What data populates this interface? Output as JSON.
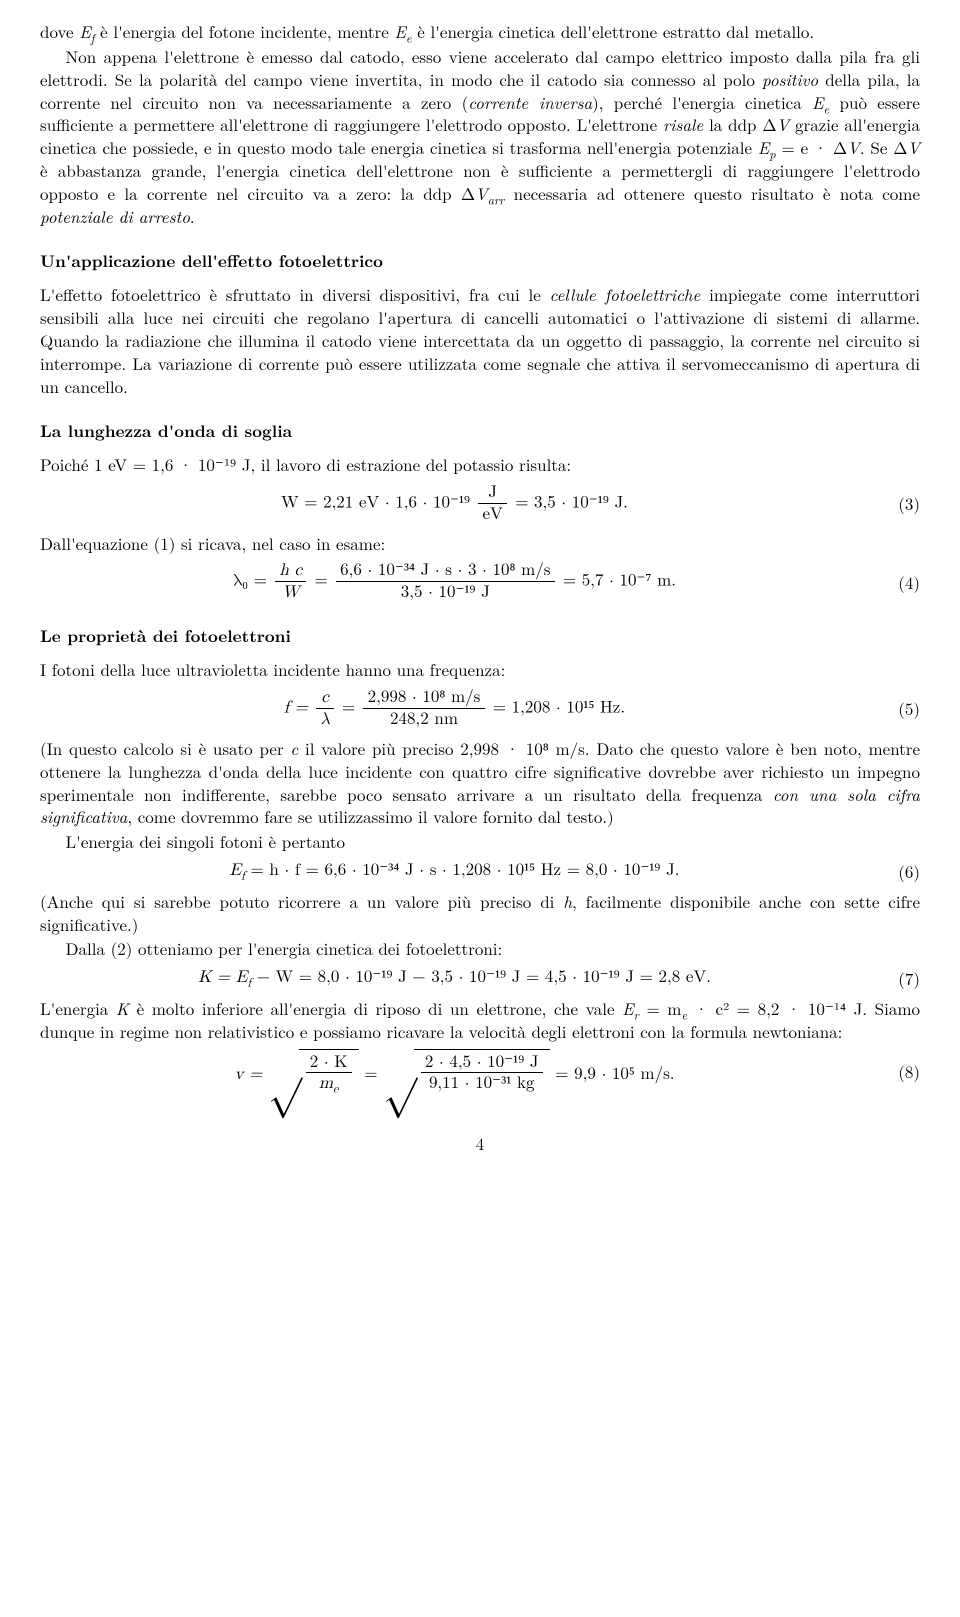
{
  "p1": {
    "t1": "dove ",
    "t2": " è l'energia del fotone incidente, mentre ",
    "t3": " è l'energia cinetica dell'elettrone estratto dal metallo."
  },
  "var_Ef": "E",
  "var_Ef_sub": "f",
  "var_Ee": "E",
  "var_Ee_sub": "e",
  "p2": {
    "t1": "Non appena l'elettrone è emesso dal catodo, esso viene accelerato dal campo elettrico imposto dalla pila fra gli elettrodi. Se la polarità del campo viene invertita, in modo che il catodo sia connesso al polo ",
    "positivo": "positivo",
    "t2": " della pila, la corrente nel circuito non va necessariamente a zero (",
    "corrente_inversa": "corrente inversa",
    "t3": "), perché l'energia cinetica ",
    "t4": " può essere sufficiente a permettere all'elettrone di raggiungere l'elettrodo opposto. L'elettrone ",
    "risale": "risale",
    "t5": " la ddp Δ",
    "V": "V",
    "t6": " grazie all'energia cinetica che possiede, e in questo modo tale energia cinetica si trasforma nell'energia potenziale ",
    "Ep_eq": "E",
    "Ep_sub": "p",
    "eq_mid": " = e · Δ",
    "t7": ". Se Δ",
    "t8": " è abbastanza grande, l'energia cinetica dell'elettrone non è sufficiente a permettergli di raggiungere l'elettrodo opposto e la corrente nel circuito va a zero: la ddp Δ",
    "Varr": "V",
    "Varr_sub": "arr",
    "t9": " necessaria ad ottenere questo risultato è nota come ",
    "pot_arresto": "potenziale di arresto",
    "t10": "."
  },
  "h_app": "Un'applicazione dell'effetto fotoelettrico",
  "p3": {
    "t1": "L'effetto fotoelettrico è sfruttato in diversi dispositivi, fra cui le ",
    "cellule": "cellule fotoelettriche",
    "t2": " impiegate come interruttori sensibili alla luce nei circuiti che regolano l'apertura di cancelli automatici o l'attivazione di sistemi di allarme. Quando la radiazione che illumina il catodo viene intercettata da un oggetto di passaggio, la corrente nel circuito si interrompe. La variazione di corrente può essere utilizzata come segnale che attiva il servomeccanismo di apertura di un cancello."
  },
  "h_lung": "La lunghezza d'onda di soglia",
  "p4": "Poiché 1 eV = 1,6 · 10⁻¹⁹ J, il lavoro di estrazione del potassio risulta:",
  "eq3": {
    "pre": "W = 2,21 eV · 1,6 · 10⁻¹⁹ ",
    "num": "J",
    "den": "eV",
    "post": " = 3,5 · 10⁻¹⁹ J.",
    "n": "(3)"
  },
  "p5": "Dall'equazione (1) si ricava, nel caso in esame:",
  "eq4": {
    "lhs": "λ₀ = ",
    "num1": "h c",
    "den1": "W",
    "mid": " = ",
    "num2": "6,6 · 10⁻³⁴ J · s · 3 · 10⁸ m/s",
    "den2": "3,5 · 10⁻¹⁹ J",
    "post": " = 5,7 · 10⁻⁷ m.",
    "n": "(4)"
  },
  "h_prop": "Le proprietà dei fotoelettroni",
  "p6": "I fotoni della luce ultravioletta incidente hanno una frequenza:",
  "eq5": {
    "lhs": "f = ",
    "num1": "c",
    "den1": "λ",
    "mid": " = ",
    "num2": "2,998 · 10⁸ m/s",
    "den2": "248,2 nm",
    "post": " = 1,208 · 10¹⁵ Hz.",
    "n": "(5)"
  },
  "p7": {
    "t1": "(In questo calcolo si è usato per ",
    "c": "c",
    "t2": " il valore più preciso 2,998 · 10⁸ m/s. Dato che questo valore è ben noto, mentre ottenere la lunghezza d'onda della luce incidente con quattro cifre significative dovrebbe aver richiesto un impegno sperimentale non indifferente, sarebbe poco sensato arrivare a un risultato della frequenza ",
    "una_sola": "con una sola cifra significativa",
    "t3": ", come dovremmo fare se utilizzassimo il valore fornito dal testo.)"
  },
  "p8": "L'energia dei singoli fotoni è pertanto",
  "eq6": {
    "body": "E",
    "sub": "f",
    "rest": " = h · f = 6,6 · 10⁻³⁴ J · s · 1,208 · 10¹⁵ Hz = 8,0 · 10⁻¹⁹ J.",
    "n": "(6)"
  },
  "p9": {
    "t1": "(Anche qui si sarebbe potuto ricorrere a un valore più preciso di ",
    "h": "h",
    "t2": ", facilmente disponibile anche con sette cifre significative.)"
  },
  "p10": "Dalla (2) otteniamo per l'energia cinetica dei fotoelettroni:",
  "eq7": {
    "body": "K = E",
    "sub": "f",
    "rest": " − W = 8,0 · 10⁻¹⁹ J − 3,5 · 10⁻¹⁹ J = 4,5 · 10⁻¹⁹ J = 2,8 eV.",
    "n": "(7)"
  },
  "p11": {
    "t1": "L'energia ",
    "K": "K",
    "t2": " è molto inferiore all'energia di riposo di un elettrone, che vale ",
    "Er": "E",
    "Er_sub": "r",
    "eq": " = m",
    "me_sub": "e",
    "c2": " · c² = ",
    "val": "8,2 · 10⁻¹⁴ J. Siamo dunque in regime non relativistico e possiamo ricavare la velocità degli elettroni con la formula newtoniana:"
  },
  "eq8": {
    "lhs": "v = ",
    "num1": "2 · K",
    "den1": "m",
    "den1_sub": "e",
    "mid": " = ",
    "num2": "2 · 4,5 · 10⁻¹⁹ J",
    "den2": "9,11 · 10⁻³¹ kg",
    "post": " = 9,9 · 10⁵ m/s.",
    "n": "(8)"
  },
  "pagenum": "4"
}
